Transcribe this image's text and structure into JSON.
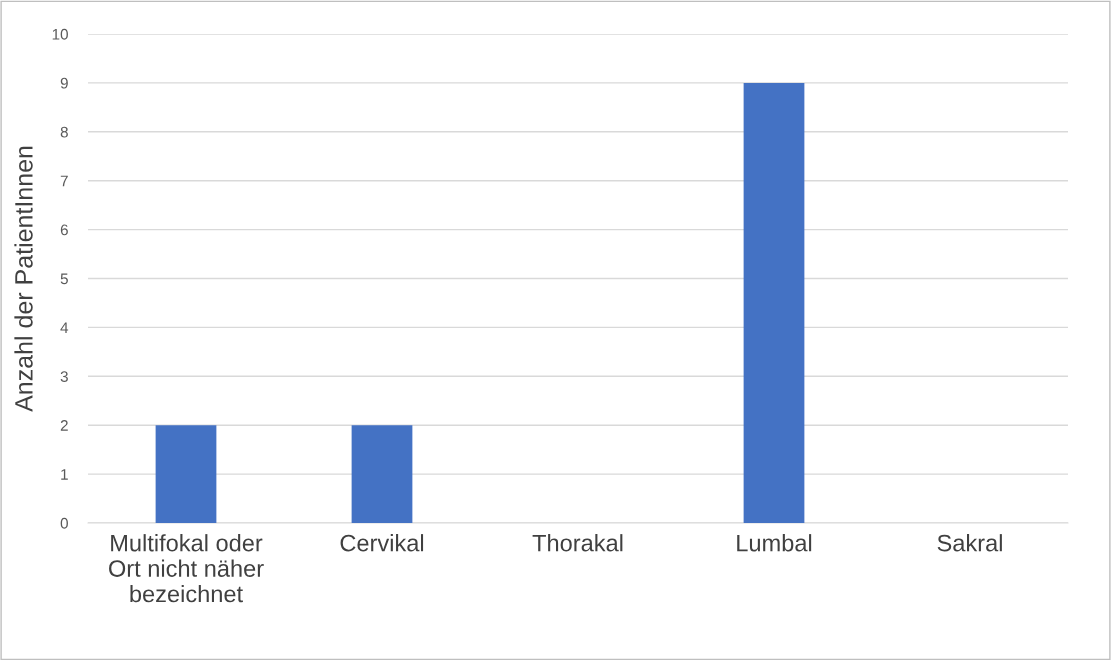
{
  "chart_data": {
    "type": "bar",
    "ylabel": "Anzahl der PatientInnen",
    "categories": [
      "Multifokal oder Ort nicht näher bezeichnet",
      "Cervikal",
      "Thorakal",
      "Lumbal",
      "Sakral"
    ],
    "values": [
      2,
      2,
      0,
      9,
      0
    ],
    "color": "#4472c4",
    "ylim": [
      0,
      10
    ],
    "yticks": [
      0,
      1,
      2,
      3,
      4,
      5,
      6,
      7,
      8,
      9,
      10
    ],
    "grid": "y",
    "legend": false
  }
}
